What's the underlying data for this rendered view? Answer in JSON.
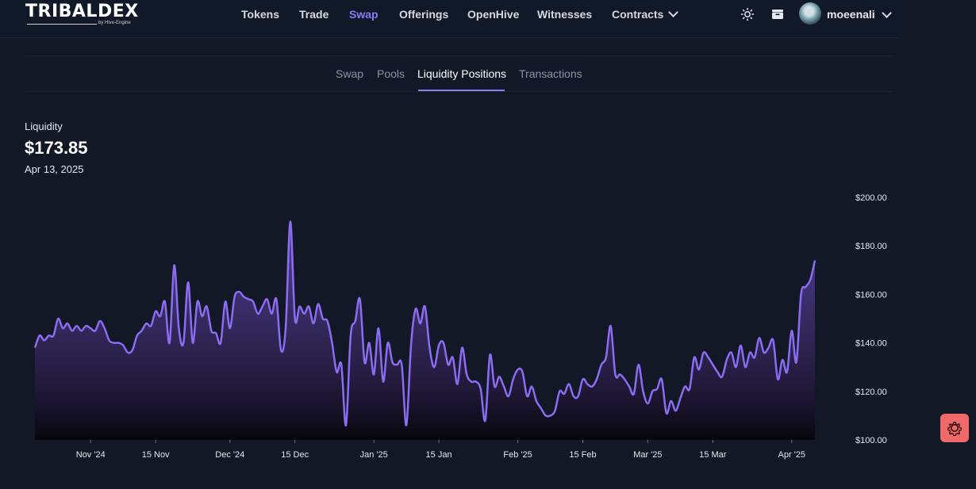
{
  "header": {
    "logo": {
      "main": "TRIBALDEX",
      "sub": "by Hive-Engine"
    },
    "nav": [
      {
        "label": "Tokens",
        "active": false
      },
      {
        "label": "Trade",
        "active": false
      },
      {
        "label": "Swap",
        "active": true
      },
      {
        "label": "Offerings",
        "active": false
      },
      {
        "label": "OpenHive",
        "active": false
      },
      {
        "label": "Witnesses",
        "active": false
      },
      {
        "label": "Contracts",
        "active": false
      }
    ],
    "icons": [
      "theme-toggle-icon",
      "wallet-icon",
      "chevron-down-icon"
    ],
    "user": {
      "name": "moeenali"
    },
    "accent": "#8b7cf6"
  },
  "tabs": [
    {
      "label": "Swap",
      "active": false
    },
    {
      "label": "Pools",
      "active": false
    },
    {
      "label": "Liquidity Positions",
      "active": true
    },
    {
      "label": "Transactions",
      "active": false
    }
  ],
  "summary": {
    "label": "Liquidity",
    "value": "$173.85",
    "date": "Apr 13, 2025"
  },
  "chart_data": {
    "type": "area",
    "color": "#8b6cf2",
    "xaxis_ticks": [
      "Nov '24",
      "15 Nov",
      "Dec '24",
      "15 Dec",
      "Jan '25",
      "15 Jan",
      "Feb '25",
      "15 Feb",
      "Mar '25",
      "15 Mar",
      "Apr '25"
    ],
    "yaxis_ticks": [
      "$200.00",
      "$180.00",
      "$160.00",
      "$140.00",
      "$120.00",
      "$100.00"
    ],
    "ylim": [
      100,
      200
    ],
    "x_start": "2024-10-20",
    "x_end": "2025-04-13",
    "points": [
      [
        "2024-10-20",
        138
      ],
      [
        "2024-10-21",
        143
      ],
      [
        "2024-10-22",
        141
      ],
      [
        "2024-10-23",
        143
      ],
      [
        "2024-10-24",
        143
      ],
      [
        "2024-10-25",
        150
      ],
      [
        "2024-10-26",
        146
      ],
      [
        "2024-10-27",
        148
      ],
      [
        "2024-10-28",
        145
      ],
      [
        "2024-10-29",
        147
      ],
      [
        "2024-10-30",
        145
      ],
      [
        "2024-10-31",
        147
      ],
      [
        "2024-11-01",
        146
      ],
      [
        "2024-11-02",
        145
      ],
      [
        "2024-11-03",
        149
      ],
      [
        "2024-11-04",
        146
      ],
      [
        "2024-11-05",
        141
      ],
      [
        "2024-11-06",
        140
      ],
      [
        "2024-11-07",
        140
      ],
      [
        "2024-11-08",
        139
      ],
      [
        "2024-11-09",
        136
      ],
      [
        "2024-11-10",
        137
      ],
      [
        "2024-11-11",
        143
      ],
      [
        "2024-11-12",
        145
      ],
      [
        "2024-11-13",
        148
      ],
      [
        "2024-11-14",
        147
      ],
      [
        "2024-11-15",
        153
      ],
      [
        "2024-11-16",
        151
      ],
      [
        "2024-11-17",
        157
      ],
      [
        "2024-11-18",
        140
      ],
      [
        "2024-11-19",
        172
      ],
      [
        "2024-11-20",
        146
      ],
      [
        "2024-11-21",
        140
      ],
      [
        "2024-11-22",
        165
      ],
      [
        "2024-11-23",
        140
      ],
      [
        "2024-11-24",
        157
      ],
      [
        "2024-11-25",
        151
      ],
      [
        "2024-11-26",
        155
      ],
      [
        "2024-11-27",
        145
      ],
      [
        "2024-11-28",
        144
      ],
      [
        "2024-11-29",
        140
      ],
      [
        "2024-11-30",
        157
      ],
      [
        "2024-12-01",
        146
      ],
      [
        "2024-12-02",
        159
      ],
      [
        "2024-12-03",
        161
      ],
      [
        "2024-12-04",
        159
      ],
      [
        "2024-12-05",
        158
      ],
      [
        "2024-12-06",
        157
      ],
      [
        "2024-12-07",
        152
      ],
      [
        "2024-12-08",
        155
      ],
      [
        "2024-12-09",
        158
      ],
      [
        "2024-12-10",
        152
      ],
      [
        "2024-12-11",
        158
      ],
      [
        "2024-12-12",
        137
      ],
      [
        "2024-12-13",
        146
      ],
      [
        "2024-12-14",
        190
      ],
      [
        "2024-12-15",
        150
      ],
      [
        "2024-12-16",
        155
      ],
      [
        "2024-12-17",
        152
      ],
      [
        "2024-12-18",
        155
      ],
      [
        "2024-12-19",
        148
      ],
      [
        "2024-12-20",
        156
      ],
      [
        "2024-12-21",
        150
      ],
      [
        "2024-12-22",
        149
      ],
      [
        "2024-12-23",
        140
      ],
      [
        "2024-12-24",
        128
      ],
      [
        "2024-12-25",
        131
      ],
      [
        "2024-12-26",
        106
      ],
      [
        "2024-12-27",
        143
      ],
      [
        "2024-12-28",
        149
      ],
      [
        "2024-12-29",
        158
      ],
      [
        "2024-12-30",
        132
      ],
      [
        "2024-12-31",
        140
      ],
      [
        "2025-01-01",
        127
      ],
      [
        "2025-01-02",
        146
      ],
      [
        "2025-01-03",
        124
      ],
      [
        "2025-01-04",
        140
      ],
      [
        "2025-01-05",
        132
      ],
      [
        "2025-01-06",
        131
      ],
      [
        "2025-01-07",
        131
      ],
      [
        "2025-01-08",
        106
      ],
      [
        "2025-01-09",
        139
      ],
      [
        "2025-01-10",
        154
      ],
      [
        "2025-01-11",
        148
      ],
      [
        "2025-01-12",
        155
      ],
      [
        "2025-01-13",
        138
      ],
      [
        "2025-01-14",
        130
      ],
      [
        "2025-01-15",
        139
      ],
      [
        "2025-01-16",
        140
      ],
      [
        "2025-01-17",
        131
      ],
      [
        "2025-01-18",
        134
      ],
      [
        "2025-01-19",
        123
      ],
      [
        "2025-01-20",
        138
      ],
      [
        "2025-01-21",
        127
      ],
      [
        "2025-01-22",
        124
      ],
      [
        "2025-01-23",
        124
      ],
      [
        "2025-01-24",
        121
      ],
      [
        "2025-01-25",
        108
      ],
      [
        "2025-01-26",
        135
      ],
      [
        "2025-01-27",
        122
      ],
      [
        "2025-01-28",
        126
      ],
      [
        "2025-01-29",
        122
      ],
      [
        "2025-01-30",
        118
      ],
      [
        "2025-01-31",
        125
      ],
      [
        "2025-02-01",
        129
      ],
      [
        "2025-02-02",
        128
      ],
      [
        "2025-02-03",
        118
      ],
      [
        "2025-02-04",
        122
      ],
      [
        "2025-02-05",
        116
      ],
      [
        "2025-02-06",
        113
      ],
      [
        "2025-02-07",
        110
      ],
      [
        "2025-02-08",
        110
      ],
      [
        "2025-02-09",
        112
      ],
      [
        "2025-02-10",
        120
      ],
      [
        "2025-02-11",
        119
      ],
      [
        "2025-02-12",
        123
      ],
      [
        "2025-02-13",
        118
      ],
      [
        "2025-02-14",
        118
      ],
      [
        "2025-02-15",
        125
      ],
      [
        "2025-02-16",
        123
      ],
      [
        "2025-02-17",
        122
      ],
      [
        "2025-02-18",
        125
      ],
      [
        "2025-02-19",
        131
      ],
      [
        "2025-02-20",
        134
      ],
      [
        "2025-02-21",
        147
      ],
      [
        "2025-02-22",
        127
      ],
      [
        "2025-02-23",
        127
      ],
      [
        "2025-02-24",
        125
      ],
      [
        "2025-02-25",
        122
      ],
      [
        "2025-02-26",
        119
      ],
      [
        "2025-02-27",
        131
      ],
      [
        "2025-02-28",
        120
      ],
      [
        "2025-03-01",
        115
      ],
      [
        "2025-03-02",
        120
      ],
      [
        "2025-03-03",
        121
      ],
      [
        "2025-03-04",
        125
      ],
      [
        "2025-03-05",
        111
      ],
      [
        "2025-03-06",
        116
      ],
      [
        "2025-03-07",
        112
      ],
      [
        "2025-03-08",
        117
      ],
      [
        "2025-03-09",
        122
      ],
      [
        "2025-03-10",
        121
      ],
      [
        "2025-03-11",
        134
      ],
      [
        "2025-03-12",
        129
      ],
      [
        "2025-03-13",
        136
      ],
      [
        "2025-03-14",
        134
      ],
      [
        "2025-03-15",
        131
      ],
      [
        "2025-03-16",
        128
      ],
      [
        "2025-03-17",
        126
      ],
      [
        "2025-03-18",
        133
      ],
      [
        "2025-03-19",
        136
      ],
      [
        "2025-03-20",
        130
      ],
      [
        "2025-03-21",
        139
      ],
      [
        "2025-03-22",
        130
      ],
      [
        "2025-03-23",
        136
      ],
      [
        "2025-03-24",
        134
      ],
      [
        "2025-03-25",
        142
      ],
      [
        "2025-03-26",
        136
      ],
      [
        "2025-03-27",
        138
      ],
      [
        "2025-03-28",
        141
      ],
      [
        "2025-03-29",
        125
      ],
      [
        "2025-03-30",
        133
      ],
      [
        "2025-03-31",
        128
      ],
      [
        "2025-04-01",
        145
      ],
      [
        "2025-04-02",
        132
      ],
      [
        "2025-04-03",
        160
      ],
      [
        "2025-04-04",
        163
      ],
      [
        "2025-04-05",
        166
      ],
      [
        "2025-04-06",
        174
      ]
    ]
  }
}
